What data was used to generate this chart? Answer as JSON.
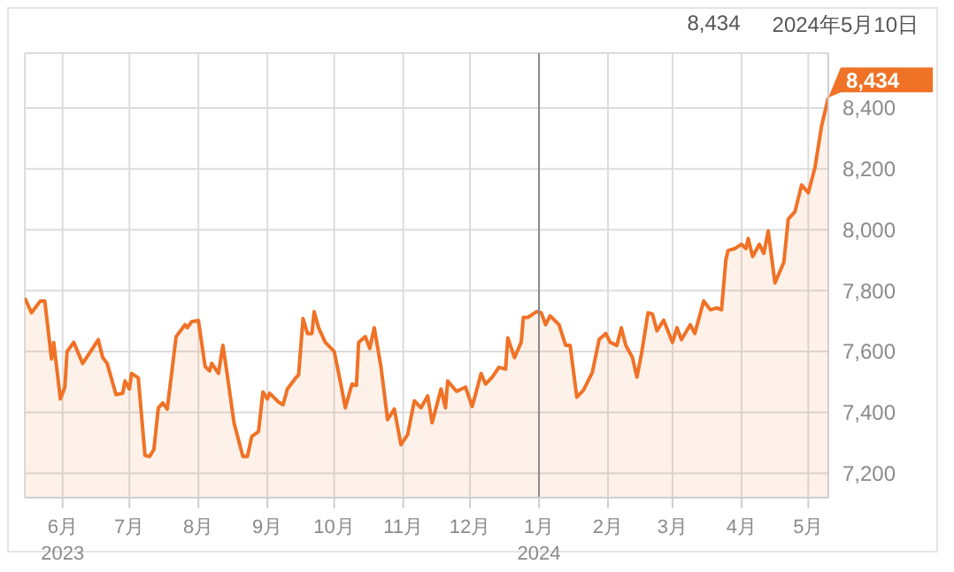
{
  "chart_data": {
    "type": "area",
    "x": [
      "2023-05-15",
      "2023-05-18",
      "2023-05-22",
      "2023-05-24",
      "2023-05-27",
      "2023-05-28",
      "2023-05-31",
      "2023-06-02",
      "2023-06-03",
      "2023-06-06",
      "2023-06-10",
      "2023-06-13",
      "2023-06-17",
      "2023-06-19",
      "2023-06-21",
      "2023-06-25",
      "2023-06-28",
      "2023-06-29",
      "2023-07-01",
      "2023-07-02",
      "2023-07-05",
      "2023-07-08",
      "2023-07-10",
      "2023-07-12",
      "2023-07-14",
      "2023-07-16",
      "2023-07-18",
      "2023-07-21",
      "2023-07-22",
      "2023-07-26",
      "2023-07-27",
      "2023-07-29",
      "2023-08-01",
      "2023-08-04",
      "2023-08-06",
      "2023-08-07",
      "2023-08-10",
      "2023-08-12",
      "2023-08-14",
      "2023-08-17",
      "2023-08-21",
      "2023-08-23",
      "2023-08-25",
      "2023-08-28",
      "2023-08-30",
      "2023-09-01",
      "2023-09-02",
      "2023-09-06",
      "2023-09-08",
      "2023-09-10",
      "2023-09-14",
      "2023-09-15",
      "2023-09-17",
      "2023-09-19",
      "2023-09-21",
      "2023-09-22",
      "2023-09-24",
      "2023-09-27",
      "2023-10-01",
      "2023-10-04",
      "2023-10-06",
      "2023-10-09",
      "2023-10-11",
      "2023-10-12",
      "2023-10-15",
      "2023-10-17",
      "2023-10-19",
      "2023-10-22",
      "2023-10-25",
      "2023-10-28",
      "2023-10-31",
      "2023-11-03",
      "2023-11-06",
      "2023-11-09",
      "2023-11-12",
      "2023-11-14",
      "2023-11-18",
      "2023-11-20",
      "2023-11-21",
      "2023-11-25",
      "2023-11-29",
      "2023-12-02",
      "2023-12-06",
      "2023-12-08",
      "2023-12-11",
      "2023-12-14",
      "2023-12-17",
      "2023-12-18",
      "2023-12-21",
      "2023-12-24",
      "2023-12-25",
      "2023-12-27",
      "2023-12-31",
      "2024-01-02",
      "2024-01-04",
      "2024-01-06",
      "2024-01-10",
      "2024-01-13",
      "2024-01-15",
      "2024-01-18",
      "2024-01-21",
      "2024-01-25",
      "2024-01-28",
      "2024-01-31",
      "2024-02-02",
      "2024-02-05",
      "2024-02-07",
      "2024-02-09",
      "2024-02-12",
      "2024-02-14",
      "2024-02-16",
      "2024-02-19",
      "2024-02-21",
      "2024-02-23",
      "2024-02-26",
      "2024-03-01",
      "2024-03-03",
      "2024-03-05",
      "2024-03-09",
      "2024-03-11",
      "2024-03-15",
      "2024-03-18",
      "2024-03-21",
      "2024-03-23",
      "2024-03-25",
      "2024-03-26",
      "2024-03-29",
      "2024-04-01",
      "2024-04-03",
      "2024-04-04",
      "2024-04-06",
      "2024-04-09",
      "2024-04-11",
      "2024-04-13",
      "2024-04-16",
      "2024-04-20",
      "2024-04-22",
      "2024-04-25",
      "2024-04-28",
      "2024-05-01",
      "2024-05-04",
      "2024-05-07",
      "2024-05-10"
    ],
    "series": [
      {
        "color": "#f07226",
        "values": [
          7776,
          7727,
          7766,
          7766,
          7575,
          7630,
          7444,
          7483,
          7600,
          7630,
          7561,
          7594,
          7639,
          7580,
          7561,
          7458,
          7463,
          7503,
          7477,
          7528,
          7513,
          7259,
          7255,
          7278,
          7415,
          7431,
          7411,
          7590,
          7649,
          7688,
          7678,
          7698,
          7702,
          7551,
          7536,
          7561,
          7528,
          7620,
          7522,
          7366,
          7255,
          7255,
          7321,
          7337,
          7467,
          7444,
          7463,
          7434,
          7425,
          7477,
          7516,
          7522,
          7708,
          7659,
          7659,
          7731,
          7678,
          7630,
          7600,
          7493,
          7415,
          7493,
          7489,
          7630,
          7649,
          7610,
          7678,
          7551,
          7376,
          7411,
          7294,
          7327,
          7438,
          7415,
          7454,
          7366,
          7477,
          7415,
          7503,
          7469,
          7483,
          7419,
          7528,
          7493,
          7516,
          7548,
          7542,
          7645,
          7580,
          7630,
          7712,
          7712,
          7731,
          7727,
          7688,
          7717,
          7688,
          7620,
          7620,
          7450,
          7473,
          7532,
          7639,
          7659,
          7630,
          7620,
          7678,
          7620,
          7580,
          7516,
          7590,
          7727,
          7723,
          7668,
          7703,
          7630,
          7678,
          7639,
          7688,
          7659,
          7766,
          7737,
          7743,
          7737,
          7903,
          7932,
          7938,
          7952,
          7938,
          7971,
          7912,
          7952,
          7922,
          7996,
          7825,
          7893,
          8035,
          8059,
          8147,
          8121,
          8205,
          8342,
          8434
        ]
      }
    ],
    "xlim": [
      "2023-05-15",
      "2024-05-10"
    ],
    "xticks": [
      {
        "value": "2023-06-01",
        "label": "6月\n2023"
      },
      {
        "value": "2023-07-01",
        "label": "7月"
      },
      {
        "value": "2023-08-01",
        "label": "8月"
      },
      {
        "value": "2023-09-01",
        "label": "9月"
      },
      {
        "value": "2023-10-01",
        "label": "10月"
      },
      {
        "value": "2023-11-01",
        "label": "11月"
      },
      {
        "value": "2023-12-01",
        "label": "12月"
      },
      {
        "value": "2024-01-01",
        "label": "1月\n2024"
      },
      {
        "value": "2024-02-01",
        "label": "2月"
      },
      {
        "value": "2024-03-01",
        "label": "3月"
      },
      {
        "value": "2024-04-01",
        "label": "4月"
      },
      {
        "value": "2024-05-01",
        "label": "5月"
      }
    ],
    "ylim": [
      7120,
      8580
    ],
    "yticks": [
      {
        "value": 7200,
        "label": "7,200"
      },
      {
        "value": 7400,
        "label": "7,400"
      },
      {
        "value": 7600,
        "label": "7,600"
      },
      {
        "value": 7800,
        "label": "7,800"
      },
      {
        "value": 8000,
        "label": "8,000"
      },
      {
        "value": 8200,
        "label": "8,200"
      },
      {
        "value": 8400,
        "label": "8,400"
      }
    ],
    "grid": true,
    "ref_lines": [
      {
        "axis": "x",
        "value": "2024-01-01",
        "color": "#8a8a8a"
      }
    ],
    "annotations": [
      "8,434",
      "2024年5月10日",
      {
        "text": "8,434",
        "x": "2024-05-10",
        "y": 8434
      }
    ]
  }
}
